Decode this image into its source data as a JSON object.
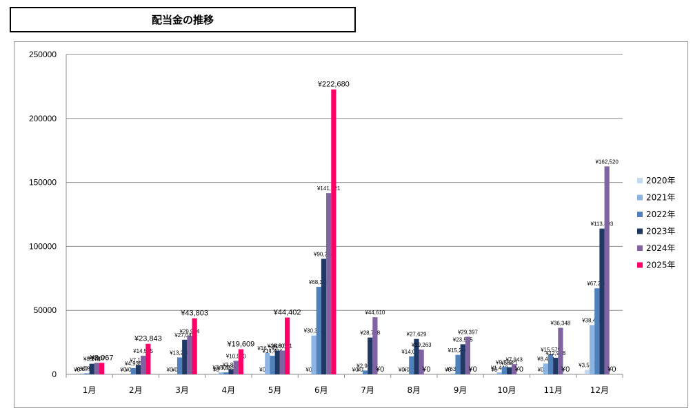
{
  "title": "配当金の推移",
  "chart_data": {
    "type": "bar",
    "title": "配当金の推移",
    "categories": [
      "1月",
      "2月",
      "3月",
      "4月",
      "5月",
      "6月",
      "7月",
      "8月",
      "9月",
      "10月",
      "11月",
      "12月"
    ],
    "yticks": [
      "0",
      "50000",
      "100000",
      "150000",
      "200000",
      "250000"
    ],
    "ylim": [
      0,
      250000
    ],
    "grid": true,
    "legend_position": "right",
    "series": [
      {
        "name": "2020年",
        "color": "#c6d9f1",
        "values": [
          0,
          0,
          0,
          0,
          0,
          0,
          0,
          0,
          0,
          0,
          0,
          3500
        ],
        "labels": [
          "¥0",
          "¥0",
          "¥0",
          "¥0",
          "¥0",
          "¥0",
          "¥0",
          "¥0",
          "¥0",
          "¥0",
          "¥0",
          "¥3,500"
        ]
      },
      {
        "name": "2021年",
        "color": "#8db4e2",
        "values": [
          637,
          0,
          0,
          1500,
          16797,
          30354,
          0,
          0,
          632,
          1448,
          8433,
          38496
        ],
        "labels": [
          "¥637",
          "¥0",
          "¥0",
          "¥1,500",
          "¥16,797",
          "¥30,354",
          "¥0",
          "¥0",
          "¥632",
          "¥1,448",
          "¥8,433",
          "¥38,496"
        ]
      },
      {
        "name": "2022年",
        "color": "#4f81bd",
        "values": [
          789,
          4938,
          13218,
          1558,
          14494,
          68390,
          2988,
          14036,
          15216,
          5783,
          15579,
          67226
        ],
        "labels": [
          "¥789",
          "¥4,938",
          "¥13,218",
          "¥1,558",
          "¥14,494",
          "¥68,390",
          "¥2,988",
          "¥14,036",
          "¥15,216",
          "¥5,783",
          "¥15,579",
          "¥67,226"
        ]
      },
      {
        "name": "2023年",
        "color": "#1f3864",
        "values": [
          8272,
          7197,
          27043,
          3876,
          18601,
          90284,
          28758,
          27629,
          23505,
          5521,
          12918,
          113893
        ],
        "labels": [
          "¥8,272",
          "¥7,197",
          "¥27,043",
          "¥3,876",
          "¥18,601",
          "¥90,284",
          "¥28,758",
          "¥27,629",
          "¥23,505",
          "¥5,521",
          "¥12,918",
          "¥113,893"
        ]
      },
      {
        "name": "2024年",
        "color": "#8064a2",
        "values": [
          8967,
          14575,
          29944,
          10580,
          18601,
          141621,
          44610,
          19263,
          29397,
          7943,
          36348,
          162520
        ],
        "labels": [
          "¥8,967",
          "¥14,575",
          "¥29,944",
          "¥10,580",
          "¥18,601",
          "¥141,621",
          "¥44,610",
          "¥19,263",
          "¥29,397",
          "¥7,943",
          "¥36,348",
          "¥162,520"
        ]
      },
      {
        "name": "2025年",
        "color": "#ff0066",
        "values": [
          8967,
          23843,
          43803,
          19609,
          44402,
          222680,
          0,
          0,
          0,
          0,
          0,
          0
        ],
        "labels": [
          "¥8,967",
          "¥23,843",
          "¥43,803",
          "¥19,609",
          "¥44,402",
          "¥222,680",
          "¥0",
          "¥0",
          "¥0",
          "¥0",
          "¥0",
          "¥0"
        ]
      }
    ]
  }
}
